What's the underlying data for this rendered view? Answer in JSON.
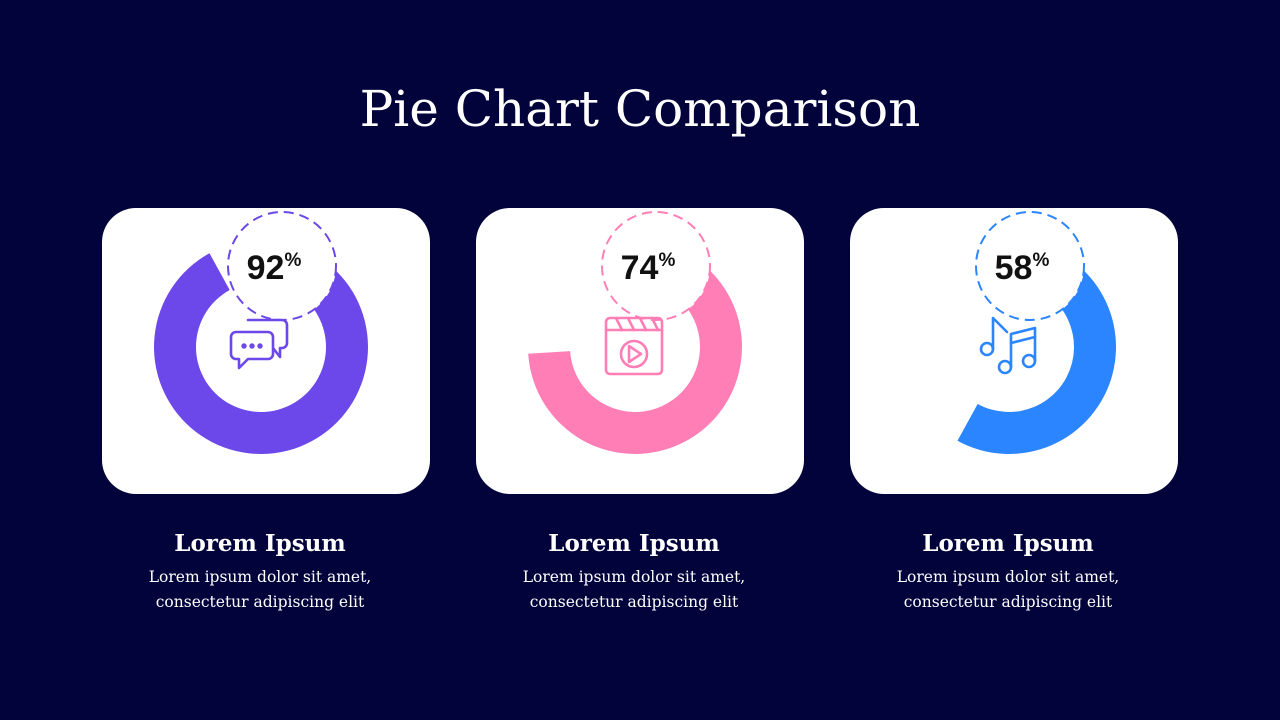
{
  "title": "Pie Chart Comparison",
  "chart_data": [
    {
      "type": "pie",
      "values": [
        92
      ],
      "value_label": "92",
      "unit": "%",
      "color": "#6c47ea",
      "icon": "chat-bubbles-icon",
      "caption_title": "Lorem Ipsum",
      "caption_line1": "Lorem ipsum dolor sit amet,",
      "caption_line2": "consectetur adipiscing elit"
    },
    {
      "type": "pie",
      "values": [
        74
      ],
      "value_label": "74",
      "unit": "%",
      "color": "#ff7eb6",
      "icon": "video-player-icon",
      "caption_title": "Lorem Ipsum",
      "caption_line1": "Lorem ipsum dolor sit amet,",
      "caption_line2": "consectetur adipiscing elit"
    },
    {
      "type": "pie",
      "values": [
        58
      ],
      "value_label": "58",
      "unit": "%",
      "color": "#2b85ff",
      "icon": "music-notes-icon",
      "caption_title": "Lorem Ipsum",
      "caption_line1": "Lorem ipsum dolor sit amet,",
      "caption_line2": "consectetur adipiscing elit"
    }
  ]
}
